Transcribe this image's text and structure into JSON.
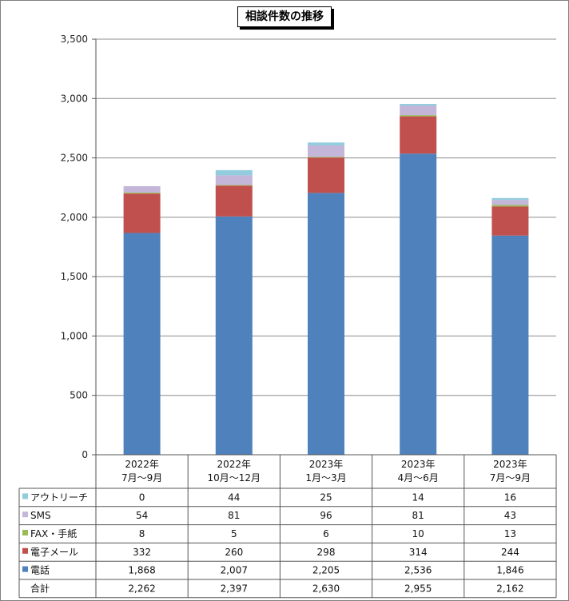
{
  "chart_data": {
    "type": "bar",
    "stacked": true,
    "title": "相談件数の推移",
    "categories": [
      [
        "2022年",
        "7月～9月"
      ],
      [
        "2022年",
        "10月～12月"
      ],
      [
        "2023年",
        "1月～3月"
      ],
      [
        "2023年",
        "4月～6月"
      ],
      [
        "2023年",
        "7月～9月"
      ]
    ],
    "ylim": [
      0,
      3500
    ],
    "yticks": [
      "0",
      "500",
      "1,000",
      "1,500",
      "2,000",
      "2,500",
      "3,000",
      "3,500"
    ],
    "grid": true,
    "series": [
      {
        "name": "電話",
        "color": "#4F81BD",
        "values": [
          1868,
          2007,
          2205,
          2536,
          1846
        ],
        "labels": [
          "1,868",
          "2,007",
          "2,205",
          "2,536",
          "1,846"
        ]
      },
      {
        "name": "電子メール",
        "color": "#C0504D",
        "values": [
          332,
          260,
          298,
          314,
          244
        ],
        "labels": [
          "332",
          "260",
          "298",
          "314",
          "244"
        ]
      },
      {
        "name": "FAX・手紙",
        "color": "#9BBB59",
        "values": [
          8,
          5,
          6,
          10,
          13
        ],
        "labels": [
          "8",
          "5",
          "6",
          "10",
          "13"
        ]
      },
      {
        "name": "SMS",
        "color": "#C3B6D9",
        "values": [
          54,
          81,
          96,
          81,
          43
        ],
        "labels": [
          "54",
          "81",
          "96",
          "81",
          "43"
        ]
      },
      {
        "name": "アウトリーチ",
        "color": "#93CDDD",
        "values": [
          0,
          44,
          25,
          14,
          16
        ],
        "labels": [
          "0",
          "44",
          "25",
          "14",
          "16"
        ]
      }
    ],
    "table_row_order": [
      "アウトリーチ",
      "SMS",
      "FAX・手紙",
      "電子メール",
      "電話",
      "合計"
    ],
    "totals": {
      "name": "合計",
      "values": [
        2262,
        2397,
        2630,
        2955,
        2162
      ],
      "labels": [
        "2,262",
        "2,397",
        "2,630",
        "2,955",
        "2,162"
      ]
    }
  }
}
